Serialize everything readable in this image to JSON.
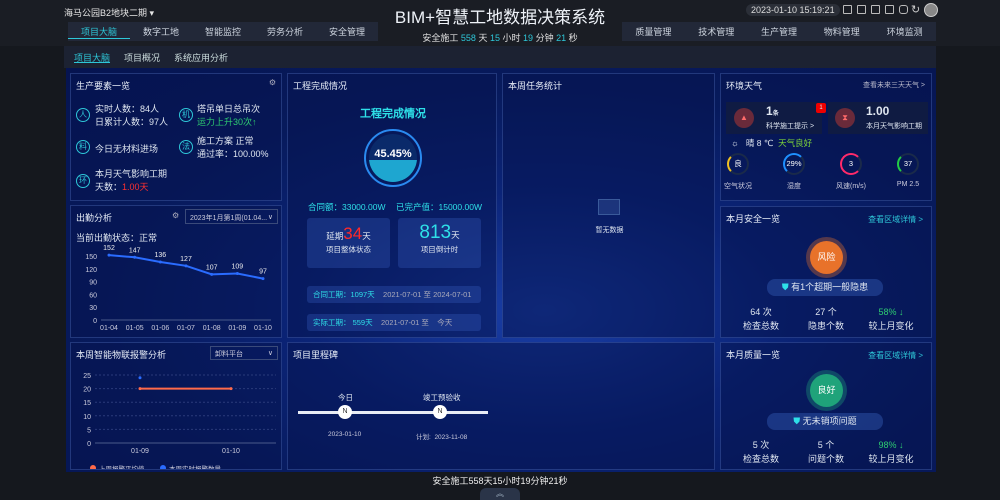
{
  "header": {
    "project": "海马公园B2地块二期",
    "title": "BIM+智慧工地数据决策系统",
    "datetime": "2023-01-10 15:19:21",
    "safe": {
      "prefix": "安全施工",
      "days": "558",
      "d": "天",
      "hours": "15",
      "h": "小时",
      "minutes": "19",
      "m": "分钟",
      "seconds": "21",
      "s": "秒"
    },
    "left_tabs": [
      "项目大脑",
      "数字工地",
      "智能监控",
      "劳务分析",
      "安全管理"
    ],
    "right_tabs": [
      "质量管理",
      "技术管理",
      "生产管理",
      "物料管理",
      "环境监测"
    ],
    "sub_tabs": [
      "项目大脑",
      "项目概况",
      "系统应用分析"
    ]
  },
  "production": {
    "title": "生产要素一览",
    "people": {
      "icon": "人",
      "line1": "实时人数：84人",
      "line2": "日累计人数：97人"
    },
    "machine": {
      "icon": "机",
      "line1": "塔吊单日总吊次",
      "line2": "运力上升30次↑"
    },
    "material": {
      "icon": "料",
      "line1": "今日无材料进场"
    },
    "method": {
      "icon": "法",
      "line1": "施工方案  正常",
      "line2": "通过率：100.00%"
    },
    "env": {
      "icon": "环",
      "line1": "本月天气影响工期",
      "line2_label": "天数：",
      "line2_value": "1.00天"
    }
  },
  "attendance": {
    "title": "出勤分析",
    "select": "2023年1月第1周(01.04...",
    "status": "当前出勤状态：正常"
  },
  "completion": {
    "title": "工程完成情况",
    "heading": "工程完成情况",
    "percent": "45.45%",
    "percent_value": 45.45,
    "contract": "合同额：33000.00W",
    "output": "已完产值：15000.00W",
    "delay_prefix": "延期",
    "delay_days": "34",
    "delay_unit": "天",
    "status_label": "项目整体状态",
    "countdown": "813",
    "countdown_unit": "天",
    "countdown_label": "项目倒计时",
    "contract_period": {
      "label": "合同工期：",
      "days": "1097天",
      "start": "2021-07-01",
      "to": "至",
      "end": "2024-07-01"
    },
    "actual_period": {
      "label": "实际工期：",
      "days": "559天",
      "start": "2021-07-01",
      "to": "至",
      "end": "今天"
    }
  },
  "tasks": {
    "title": "本周任务统计",
    "empty": "暂无数据"
  },
  "weather": {
    "title": "环境天气",
    "link": "查看未来三天天气 >",
    "tips_count": "1",
    "tips_unit": "条",
    "tips_label": "科学施工提示 >",
    "tips_badge": "1",
    "impact": "1.00",
    "impact_label": "本月天气影响工期",
    "condition": "晴",
    "temp": "8 ℃",
    "quality": "天气良好",
    "gauges": [
      {
        "value": "良",
        "label": "空气状况",
        "color": "#f0c020"
      },
      {
        "value": "29%",
        "label": "湿度",
        "color": "#1e90ff"
      },
      {
        "value": "3",
        "label": "风速(m/s)",
        "color": "#ff2a6a"
      },
      {
        "value": "37",
        "label": "PM 2.5",
        "color": "#22cc44"
      }
    ]
  },
  "safety": {
    "title": "本月安全一览",
    "link": "查看区域详情 >",
    "badge": "风险",
    "notice": "有1个超期一般隐患",
    "stats": [
      {
        "value": "64 次",
        "label": "检查总数"
      },
      {
        "value": "27 个",
        "label": "隐患个数"
      },
      {
        "value": "58% ↓",
        "label": "较上月变化"
      }
    ],
    "badge_color": "#e8722a"
  },
  "quality": {
    "title": "本月质量一览",
    "link": "查看区域详情 >",
    "badge": "良好",
    "notice": "无未销项问题",
    "stats": [
      {
        "value": "5 次",
        "label": "检查总数"
      },
      {
        "value": "5 个",
        "label": "问题个数"
      },
      {
        "value": "98% ↓",
        "label": "较上月变化"
      }
    ],
    "badge_color": "#1fa37a"
  },
  "iot": {
    "title": "本周智能物联报警分析",
    "select": "卸料平台"
  },
  "milestone": {
    "title": "项目里程碑",
    "today_label": "今日",
    "today_date": "2023-01-10",
    "done_label": "竣工预验收",
    "done_plan": "计划:",
    "done_date": "2023-11-08"
  },
  "footer": {
    "text": "安全施工558天15小时19分钟21秒",
    "chevron": "︽"
  },
  "chart_data": [
    {
      "type": "line",
      "title": "",
      "categories": [
        "01-04",
        "01-05",
        "01-06",
        "01-07",
        "01-08",
        "01-09",
        "01-10"
      ],
      "values": [
        152,
        147,
        136,
        127,
        107,
        109,
        97
      ],
      "ylim": [
        0,
        150
      ],
      "yticks": [
        0,
        30,
        60,
        90,
        120,
        150
      ],
      "color": "#2a6cff"
    },
    {
      "type": "line",
      "categories": [
        "01-09",
        "01-10"
      ],
      "ylim": [
        0,
        25
      ],
      "yticks": [
        0,
        5,
        10,
        15,
        20,
        25
      ],
      "grid": true,
      "legend": "bottom",
      "series": [
        {
          "name": "上周报警平均值",
          "values": [
            20,
            20
          ],
          "color": "#ff6a4a"
        },
        {
          "name": "本周实时报警数量",
          "values": [
            24,
            null
          ],
          "color": "#2a6cff"
        }
      ]
    }
  ]
}
